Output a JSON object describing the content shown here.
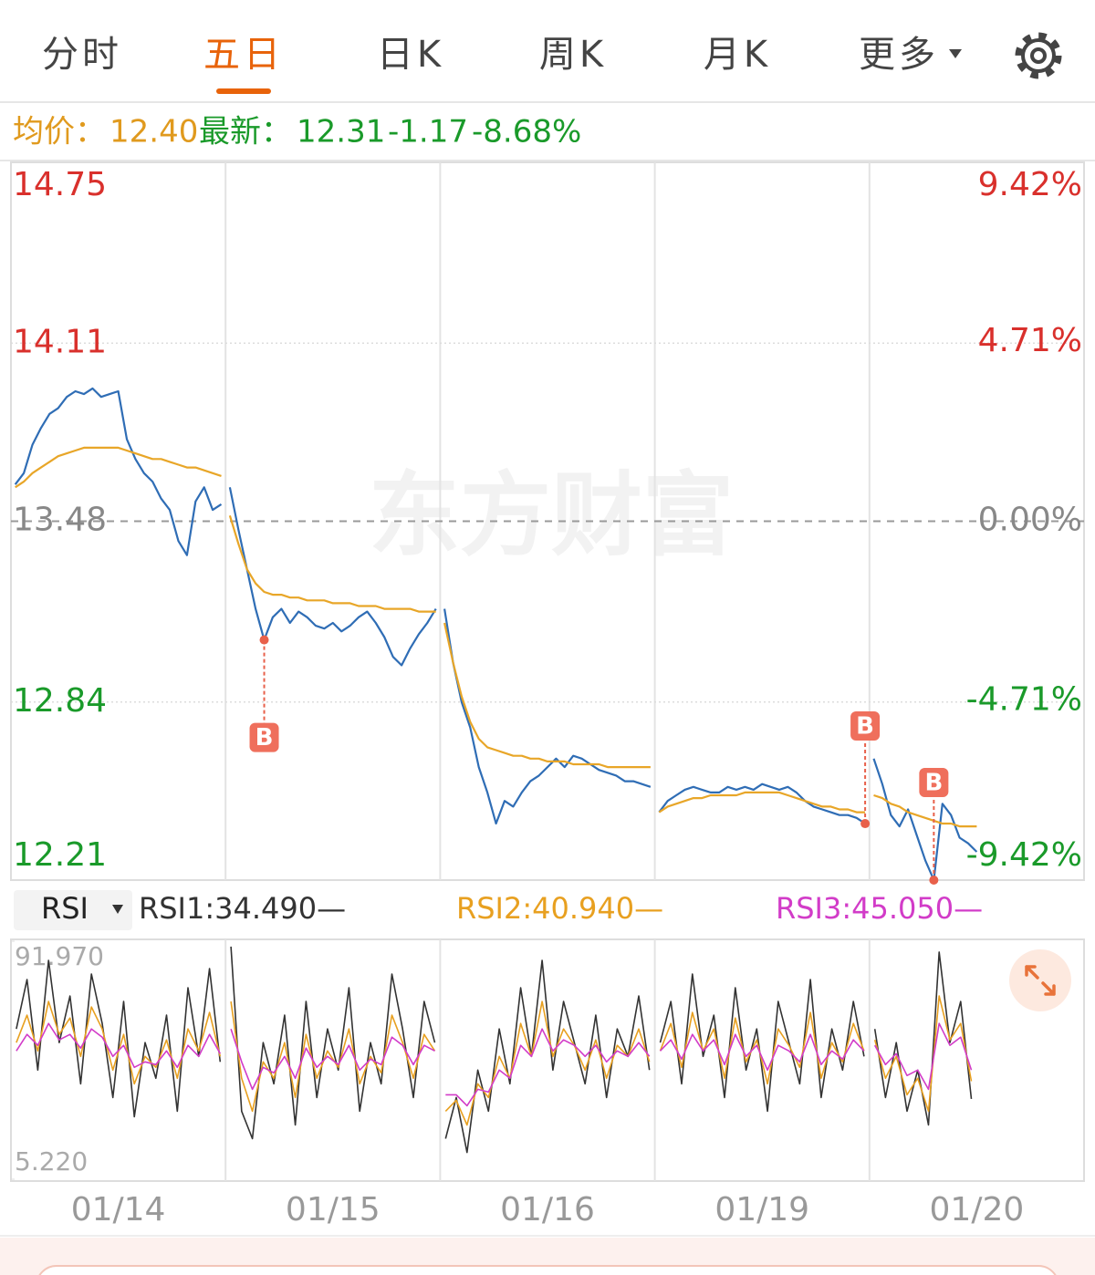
{
  "tabs": [
    "分时",
    "五日",
    "日K",
    "周K",
    "月K",
    "更多"
  ],
  "active_tab": 1,
  "quote": {
    "avg_label": "均价：",
    "avg": "12.40",
    "last_label": "最新：",
    "last": "12.31",
    "change": "-1.17",
    "change_pct": "-8.68%"
  },
  "watermark": "东方财富",
  "indicator": "RSI",
  "chart_data": [
    {
      "type": "line",
      "categories": [
        "01/14",
        "01/15",
        "01/16",
        "01/19",
        "01/20"
      ],
      "ylim": [
        12.21,
        14.75
      ],
      "yticks": [
        14.75,
        14.11,
        13.48,
        12.84,
        12.21
      ],
      "y2lim": [
        -9.42,
        9.42
      ],
      "y2ticks": [
        {
          "value": 9.42,
          "label": "9.42%"
        },
        {
          "value": 4.71,
          "label": "4.71%"
        },
        {
          "value": 0,
          "label": "0.00%"
        },
        {
          "value": -4.71,
          "label": "-4.71%"
        },
        {
          "value": -9.42,
          "label": "-9.42%"
        }
      ],
      "grid": true,
      "colors": {
        "up": "#d9302c",
        "down": "#1a9a2a",
        "flat": "#888888"
      },
      "series": [
        {
          "color": "#2f6db5",
          "values": [
            [
              13.61,
              13.65,
              13.75,
              13.81,
              13.86,
              13.88,
              13.92,
              13.94,
              13.93,
              13.95,
              13.92,
              13.93,
              13.94,
              13.77,
              13.7,
              13.65,
              13.62,
              13.56,
              13.52,
              13.41,
              13.36,
              13.55,
              13.6,
              13.52,
              13.54
            ],
            [
              13.6,
              13.45,
              13.31,
              13.17,
              13.06,
              13.14,
              13.17,
              13.12,
              13.16,
              13.14,
              13.11,
              13.1,
              13.12,
              13.09,
              13.11,
              13.14,
              13.16,
              13.12,
              13.07,
              13.0,
              12.97,
              13.03,
              13.08,
              13.12,
              13.17
            ],
            [
              13.17,
              12.98,
              12.84,
              12.75,
              12.61,
              12.52,
              12.41,
              12.49,
              12.47,
              12.52,
              12.56,
              12.58,
              12.61,
              12.64,
              12.61,
              12.65,
              12.64,
              12.62,
              12.6,
              12.59,
              12.58,
              12.56,
              12.56,
              12.55,
              12.54
            ],
            [
              12.45,
              12.49,
              12.51,
              12.53,
              12.54,
              12.53,
              12.52,
              12.52,
              12.54,
              12.53,
              12.54,
              12.53,
              12.55,
              12.54,
              12.53,
              12.54,
              12.52,
              12.49,
              12.47,
              12.46,
              12.45,
              12.44,
              12.44,
              12.43,
              12.41
            ],
            [
              12.64,
              12.55,
              12.44,
              12.4,
              12.46,
              12.37,
              12.28,
              12.21,
              12.48,
              12.44,
              12.36,
              12.34,
              12.31
            ]
          ]
        },
        {
          "color": "#e8a628",
          "values": [
            [
              13.6,
              13.62,
              13.65,
              13.67,
              13.69,
              13.71,
              13.72,
              13.73,
              13.74,
              13.74,
              13.74,
              13.74,
              13.74,
              13.73,
              13.72,
              13.71,
              13.7,
              13.7,
              13.69,
              13.68,
              13.67,
              13.67,
              13.66,
              13.65,
              13.64
            ],
            [
              13.5,
              13.4,
              13.31,
              13.26,
              13.23,
              13.22,
              13.22,
              13.21,
              13.21,
              13.2,
              13.2,
              13.2,
              13.19,
              13.19,
              13.19,
              13.18,
              13.18,
              13.18,
              13.17,
              13.17,
              13.17,
              13.17,
              13.16,
              13.16,
              13.16
            ],
            [
              13.12,
              12.98,
              12.86,
              12.77,
              12.71,
              12.68,
              12.67,
              12.66,
              12.65,
              12.65,
              12.64,
              12.64,
              12.63,
              12.63,
              12.63,
              12.62,
              12.62,
              12.62,
              12.62,
              12.61,
              12.61,
              12.61,
              12.61,
              12.61,
              12.61
            ],
            [
              12.45,
              12.47,
              12.48,
              12.49,
              12.5,
              12.5,
              12.51,
              12.51,
              12.51,
              12.51,
              12.52,
              12.52,
              12.52,
              12.52,
              12.52,
              12.51,
              12.5,
              12.49,
              12.48,
              12.47,
              12.47,
              12.46,
              12.46,
              12.45,
              12.45
            ],
            [
              12.51,
              12.5,
              12.48,
              12.47,
              12.45,
              12.44,
              12.43,
              12.42,
              12.41,
              12.41,
              12.4,
              12.4,
              12.4
            ]
          ]
        }
      ],
      "signals": [
        {
          "label": "B",
          "day": 1,
          "point": 4,
          "position": "below"
        },
        {
          "label": "B",
          "day": 3,
          "point": 24,
          "position": "above"
        },
        {
          "label": "B",
          "day": 4,
          "point": 7,
          "position": "above"
        }
      ]
    },
    {
      "type": "line",
      "categories": [
        "01/14",
        "01/15",
        "01/16",
        "01/19",
        "01/20"
      ],
      "ylim": [
        5.22,
        91.97
      ],
      "yticks": [
        {
          "value": 91.97,
          "label": "91.970"
        },
        {
          "value": 5.22,
          "label": "5.220"
        }
      ],
      "series": [
        {
          "name": "RSI1:34.490—",
          "color": "#333333",
          "values": [
            [
              60,
              78,
              45,
              85,
              55,
              72,
              40,
              80,
              62,
              35,
              70,
              28,
              55,
              42,
              65,
              30,
              75,
              50,
              82,
              48
            ],
            [
              90,
              30,
              20,
              55,
              40,
              65,
              25,
              70,
              35,
              60,
              45,
              75,
              30,
              55,
              40,
              80,
              60,
              35,
              70,
              55
            ],
            [
              20,
              35,
              15,
              45,
              30,
              60,
              40,
              75,
              50,
              85,
              45,
              70,
              55,
              40,
              65,
              35,
              60,
              50,
              72,
              45
            ],
            [
              55,
              70,
              40,
              80,
              50,
              65,
              35,
              75,
              45,
              60,
              30,
              70,
              55,
              40,
              78,
              35,
              60,
              45,
              70,
              50
            ],
            [
              60,
              35,
              55,
              30,
              45,
              25,
              88,
              55,
              70,
              34.49
            ]
          ]
        },
        {
          "name": "RSI2:40.940—",
          "color": "#e8a020",
          "values": [
            [
              55,
              65,
              52,
              70,
              58,
              64,
              50,
              68,
              60,
              45,
              58,
              40,
              50,
              46,
              56,
              42,
              60,
              52,
              66,
              50
            ],
            [
              70,
              42,
              30,
              48,
              42,
              55,
              35,
              58,
              42,
              52,
              46,
              60,
              40,
              50,
              44,
              65,
              55,
              42,
              58,
              52
            ],
            [
              30,
              34,
              25,
              40,
              35,
              50,
              42,
              62,
              50,
              70,
              50,
              60,
              54,
              45,
              56,
              42,
              54,
              50,
              60,
              48
            ],
            [
              52,
              62,
              46,
              66,
              52,
              60,
              42,
              64,
              48,
              56,
              40,
              60,
              54,
              46,
              66,
              42,
              55,
              48,
              62,
              52
            ],
            [
              56,
              42,
              50,
              36,
              42,
              30,
              72,
              56,
              62,
              40.94
            ]
          ]
        },
        {
          "name": "RSI3:45.050—",
          "color": "#d23cc8",
          "values": [
            [
              52,
              58,
              54,
              62,
              56,
              58,
              53,
              60,
              57,
              50,
              54,
              46,
              48,
              47,
              52,
              46,
              54,
              50,
              58,
              51
            ],
            [
              60,
              48,
              38,
              46,
              44,
              50,
              42,
              53,
              46,
              50,
              47,
              54,
              45,
              49,
              47,
              57,
              54,
              47,
              54,
              52
            ],
            [
              36,
              36,
              32,
              38,
              37,
              45,
              42,
              54,
              50,
              60,
              52,
              56,
              54,
              50,
              54,
              48,
              52,
              50,
              55,
              50
            ],
            [
              52,
              56,
              49,
              58,
              52,
              56,
              47,
              58,
              50,
              54,
              45,
              54,
              52,
              48,
              58,
              47,
              52,
              49,
              56,
              52
            ],
            [
              54,
              47,
              51,
              43,
              45,
              38,
              62,
              54,
              57,
              45.05
            ]
          ]
        }
      ]
    }
  ]
}
